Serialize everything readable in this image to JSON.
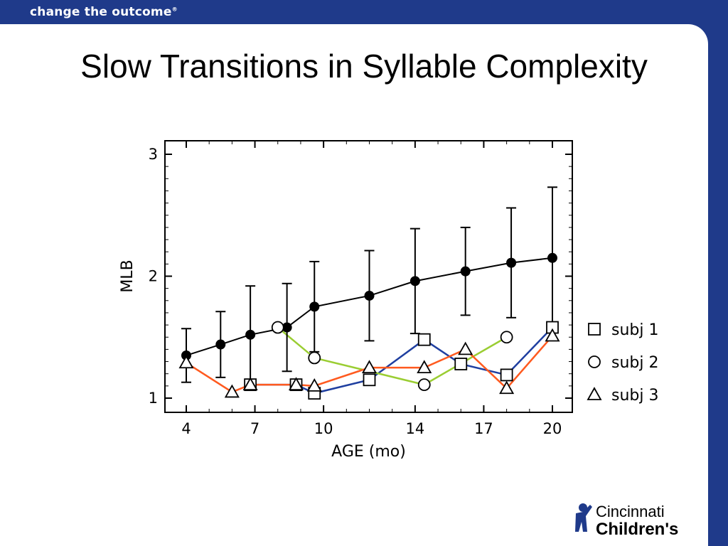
{
  "header": {
    "tagline": "change the outcome"
  },
  "slide": {
    "title": "Slow Transitions in Syllable Complexity"
  },
  "logo": {
    "line1": "Cincinnati",
    "line2": "Children's"
  },
  "colors": {
    "brand_blue": "#1f3a8a",
    "subj1": "#1f3fa0",
    "subj2": "#9acd32",
    "subj3": "#ff5a1f",
    "mean": "#000000"
  },
  "chart_data": {
    "type": "line",
    "title": "",
    "xlabel": "AGE (mo)",
    "ylabel": "MLB",
    "ylim": [
      0.9,
      3.1
    ],
    "yticks": [
      1,
      2,
      3
    ],
    "xticks": [
      4,
      7,
      10,
      14,
      17,
      20
    ],
    "xlim": [
      4,
      20
    ],
    "legend_position": "right",
    "legend": [
      {
        "marker": "square",
        "label": "subj 1"
      },
      {
        "marker": "circle",
        "label": "subj 2"
      },
      {
        "marker": "triangle",
        "label": "subj 3"
      }
    ],
    "mean_series": {
      "points": [
        {
          "x": 4,
          "y": 1.35,
          "err": 0.22
        },
        {
          "x": 5.5,
          "y": 1.44,
          "err": 0.27
        },
        {
          "x": 6.8,
          "y": 1.52,
          "err": 0.4
        },
        {
          "x": 8.4,
          "y": 1.58,
          "err": 0.36
        },
        {
          "x": 9.6,
          "y": 1.75,
          "err": 0.37
        },
        {
          "x": 12.0,
          "y": 1.84,
          "err": 0.37
        },
        {
          "x": 14.0,
          "y": 1.96,
          "err": 0.43
        },
        {
          "x": 16.2,
          "y": 2.04,
          "err": 0.36
        },
        {
          "x": 18.2,
          "y": 2.11,
          "err": 0.45
        },
        {
          "x": 20,
          "y": 2.15,
          "err": 0.58
        }
      ]
    },
    "series": [
      {
        "name": "subj 1",
        "marker": "square",
        "points": [
          {
            "x": 6.8,
            "y": 1.11
          },
          {
            "x": 8.8,
            "y": 1.11
          },
          {
            "x": 9.6,
            "y": 1.04
          },
          {
            "x": 12.0,
            "y": 1.15
          },
          {
            "x": 14.4,
            "y": 1.48
          },
          {
            "x": 16.0,
            "y": 1.28
          },
          {
            "x": 18.0,
            "y": 1.19
          },
          {
            "x": 20,
            "y": 1.58
          }
        ]
      },
      {
        "name": "subj 2",
        "marker": "circle",
        "points": [
          {
            "x": 8.0,
            "y": 1.58
          },
          {
            "x": 9.6,
            "y": 1.33
          },
          {
            "x": 14.4,
            "y": 1.11
          },
          {
            "x": 18.0,
            "y": 1.5
          }
        ]
      },
      {
        "name": "subj 3",
        "marker": "triangle",
        "points": [
          {
            "x": 4,
            "y": 1.29
          },
          {
            "x": 6.0,
            "y": 1.05
          },
          {
            "x": 6.8,
            "y": 1.11
          },
          {
            "x": 8.8,
            "y": 1.11
          },
          {
            "x": 9.6,
            "y": 1.1
          },
          {
            "x": 12.0,
            "y": 1.25
          },
          {
            "x": 14.4,
            "y": 1.25
          },
          {
            "x": 16.2,
            "y": 1.4
          },
          {
            "x": 18.0,
            "y": 1.08
          },
          {
            "x": 20,
            "y": 1.51
          }
        ]
      }
    ]
  }
}
